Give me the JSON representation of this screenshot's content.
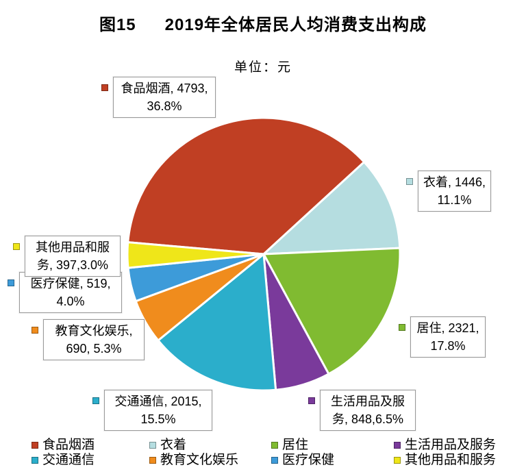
{
  "figure": {
    "label": "图15",
    "title": "2019年全体居民人均消费支出构成",
    "unit_label": "单位：元"
  },
  "chart_data": {
    "type": "pie",
    "title": "2019年全体居民人均消费支出构成",
    "unit": "元",
    "start_angle_deg": 275,
    "clockwise": true,
    "legend_position": "bottom",
    "slices": [
      {
        "label": "食品烟酒",
        "value": 4793,
        "percent": 36.8,
        "color": "#c03f23"
      },
      {
        "label": "衣着",
        "value": 1446,
        "percent": 11.1,
        "color": "#b5dde0"
      },
      {
        "label": "居住",
        "value": 2321,
        "percent": 17.8,
        "color": "#80bb31"
      },
      {
        "label": "生活用品及服务",
        "value": 848,
        "percent": 6.5,
        "color": "#7a3a9b"
      },
      {
        "label": "交通通信",
        "value": 2015,
        "percent": 15.5,
        "color": "#2baecb"
      },
      {
        "label": "教育文化娱乐",
        "value": 690,
        "percent": 5.3,
        "color": "#f08c1d"
      },
      {
        "label": "医疗保健",
        "value": 519,
        "percent": 4.0,
        "color": "#3d9bd9"
      },
      {
        "label": "其他用品和服务",
        "value": 397,
        "percent": 3.0,
        "color": "#efe619"
      }
    ]
  },
  "callouts": [
    {
      "slice": 0,
      "line1": "食品烟酒, 4793,",
      "line2": "36.8%"
    },
    {
      "slice": 1,
      "line1": "衣着, 1446,",
      "line2": "11.1%"
    },
    {
      "slice": 2,
      "line1": "居住, 2321,",
      "line2": "17.8%"
    },
    {
      "slice": 3,
      "line1": "生活用品及服",
      "line2": "务, 848,6.5%"
    },
    {
      "slice": 4,
      "line1": "交通通信, 2015,",
      "line2": "15.5%"
    },
    {
      "slice": 7,
      "line1": "其他用品和服",
      "line2": "务, 397,3.0%"
    },
    {
      "slice": 6,
      "line1": "医疗保健, 519,",
      "line2": "4.0%"
    },
    {
      "slice": 5,
      "line1": "教育文化娱乐,",
      "line2": "690, 5.3%"
    }
  ],
  "legend": {
    "rows": [
      [
        {
          "label": "食品烟酒",
          "slice": 0
        },
        {
          "label": "衣着",
          "slice": 1
        },
        {
          "label": "居住",
          "slice": 2
        },
        {
          "label": "生活用品及服务",
          "slice": 3
        }
      ],
      [
        {
          "label": "交通通信",
          "slice": 4
        },
        {
          "label": "教育文化娱乐",
          "slice": 5
        },
        {
          "label": "医疗保健",
          "slice": 6
        },
        {
          "label": "其他用品和服务",
          "slice": 7
        }
      ]
    ]
  }
}
